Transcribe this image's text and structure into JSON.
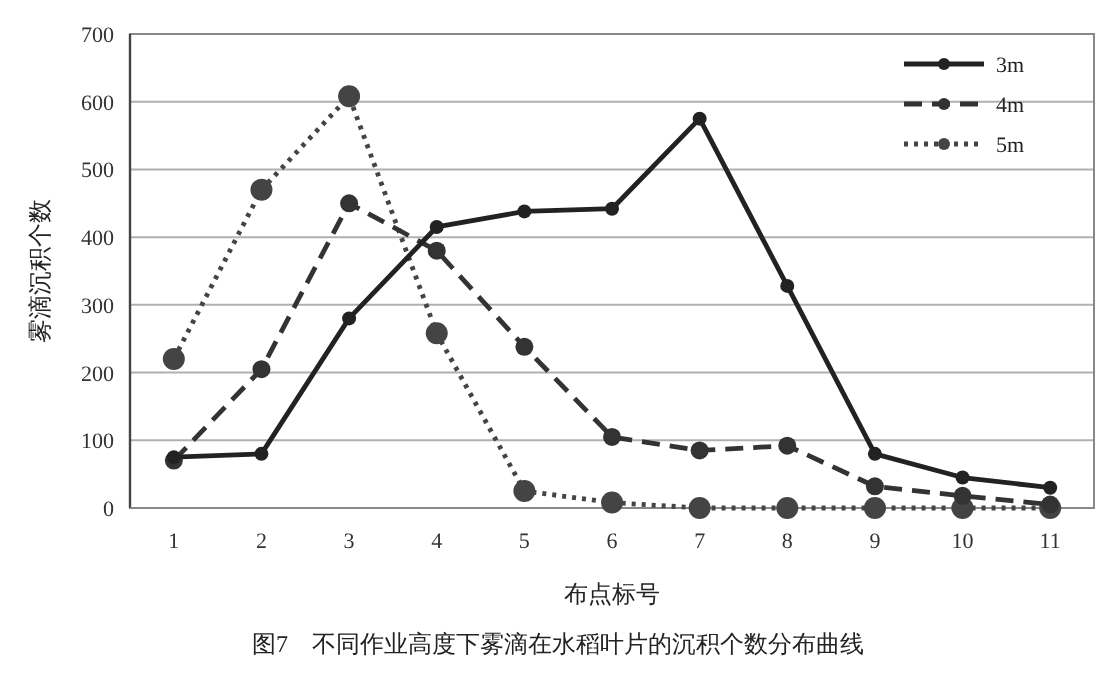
{
  "chart_data": {
    "type": "line",
    "xlabel": "布点标号",
    "ylabel": "雾滴沉积个数",
    "annotations": [
      "图7　不同作业高度下雾滴在水稻叶片的沉积个数分布曲线"
    ],
    "categories": [
      "1",
      "2",
      "3",
      "4",
      "5",
      "6",
      "7",
      "8",
      "9",
      "10",
      "11"
    ],
    "ylim": [
      0,
      700
    ],
    "yticks": [
      0,
      100,
      200,
      300,
      400,
      500,
      600,
      700
    ],
    "grid": "y",
    "legend": "top right",
    "marker": "circle",
    "series": [
      {
        "name": "3m",
        "color": "#222222",
        "line_style": "solid",
        "values": [
          75,
          80,
          280,
          415,
          438,
          442,
          575,
          328,
          80,
          45,
          30
        ]
      },
      {
        "name": "4m",
        "color": "#333333",
        "line_style": "dashed",
        "values": [
          70,
          205,
          450,
          380,
          238,
          105,
          85,
          92,
          32,
          18,
          5
        ]
      },
      {
        "name": "5m",
        "color": "#444444",
        "line_style": "dotted",
        "values": [
          220,
          470,
          608,
          258,
          25,
          8,
          0,
          0,
          0,
          0,
          0
        ]
      }
    ]
  }
}
